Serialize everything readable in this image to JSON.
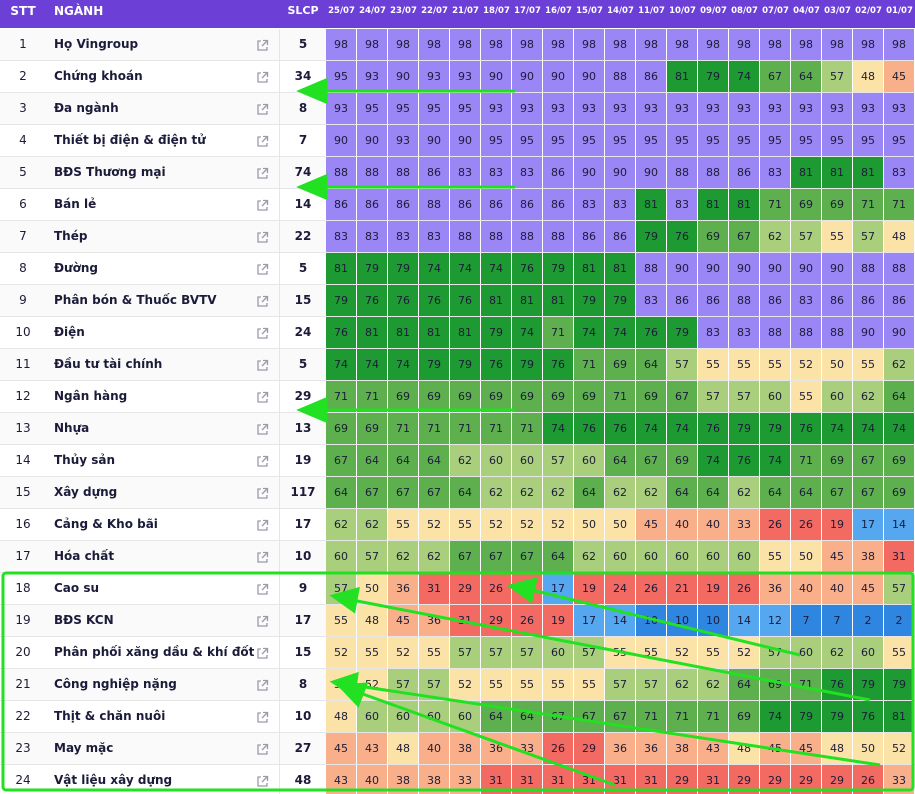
{
  "header": {
    "stt": "STT",
    "name": "NGÀNH",
    "slcp": "SLCP",
    "dates": [
      "25/07",
      "24/07",
      "23/07",
      "22/07",
      "21/07",
      "18/07",
      "17/07",
      "16/07",
      "15/07",
      "14/07",
      "11/07",
      "10/07",
      "09/07",
      "08/07",
      "07/07",
      "04/07",
      "03/07",
      "02/07",
      "01/07"
    ]
  },
  "rows": [
    {
      "stt": "1",
      "name": "Họ Vingroup",
      "slcp": "5",
      "values": [
        98,
        98,
        98,
        98,
        98,
        98,
        98,
        98,
        98,
        98,
        98,
        98,
        98,
        98,
        98,
        98,
        98,
        98,
        98
      ]
    },
    {
      "stt": "2",
      "name": "Chứng khoán",
      "slcp": "34",
      "values": [
        95,
        93,
        90,
        93,
        93,
        90,
        90,
        90,
        90,
        88,
        86,
        81,
        79,
        74,
        67,
        64,
        57,
        48,
        45
      ]
    },
    {
      "stt": "3",
      "name": "Đa ngành",
      "slcp": "8",
      "values": [
        93,
        95,
        95,
        95,
        95,
        93,
        93,
        93,
        93,
        93,
        93,
        93,
        93,
        93,
        93,
        93,
        93,
        93,
        93
      ]
    },
    {
      "stt": "4",
      "name": "Thiết bị điện & điện tử",
      "slcp": "7",
      "values": [
        90,
        90,
        93,
        90,
        90,
        95,
        95,
        95,
        95,
        95,
        95,
        95,
        95,
        95,
        95,
        95,
        95,
        95,
        95
      ]
    },
    {
      "stt": "5",
      "name": "BĐS Thương mại",
      "slcp": "74",
      "values": [
        88,
        88,
        88,
        86,
        83,
        83,
        83,
        86,
        90,
        90,
        90,
        88,
        88,
        86,
        83,
        81,
        81,
        81,
        83
      ]
    },
    {
      "stt": "6",
      "name": "Bán lẻ",
      "slcp": "14",
      "values": [
        86,
        86,
        86,
        88,
        86,
        86,
        86,
        86,
        83,
        83,
        81,
        83,
        81,
        81,
        71,
        69,
        69,
        71,
        71
      ]
    },
    {
      "stt": "7",
      "name": "Thép",
      "slcp": "22",
      "values": [
        83,
        83,
        83,
        83,
        88,
        88,
        88,
        88,
        86,
        86,
        79,
        76,
        69,
        67,
        62,
        57,
        55,
        57,
        48
      ]
    },
    {
      "stt": "8",
      "name": "Đường",
      "slcp": "5",
      "values": [
        81,
        79,
        79,
        74,
        74,
        74,
        76,
        79,
        81,
        81,
        88,
        90,
        90,
        90,
        90,
        90,
        90,
        88,
        88
      ]
    },
    {
      "stt": "9",
      "name": "Phân bón & Thuốc BVTV",
      "slcp": "15",
      "values": [
        79,
        76,
        76,
        76,
        76,
        81,
        81,
        81,
        79,
        79,
        83,
        86,
        86,
        88,
        86,
        83,
        86,
        86,
        86
      ]
    },
    {
      "stt": "10",
      "name": "Điện",
      "slcp": "24",
      "values": [
        76,
        81,
        81,
        81,
        81,
        79,
        74,
        71,
        74,
        74,
        76,
        79,
        83,
        83,
        88,
        88,
        88,
        90,
        90
      ]
    },
    {
      "stt": "11",
      "name": "Đầu tư tài chính",
      "slcp": "5",
      "values": [
        74,
        74,
        74,
        79,
        79,
        76,
        79,
        76,
        71,
        69,
        64,
        57,
        55,
        55,
        55,
        52,
        50,
        55,
        62
      ]
    },
    {
      "stt": "12",
      "name": "Ngân hàng",
      "slcp": "29",
      "values": [
        71,
        71,
        69,
        69,
        69,
        69,
        69,
        69,
        69,
        71,
        69,
        67,
        57,
        57,
        60,
        55,
        60,
        62,
        64
      ]
    },
    {
      "stt": "13",
      "name": "Nhựa",
      "slcp": "13",
      "values": [
        69,
        69,
        71,
        71,
        71,
        71,
        71,
        74,
        76,
        76,
        74,
        74,
        76,
        79,
        79,
        76,
        74,
        74,
        74
      ]
    },
    {
      "stt": "14",
      "name": "Thủy sản",
      "slcp": "19",
      "values": [
        67,
        64,
        64,
        64,
        62,
        60,
        60,
        57,
        60,
        64,
        67,
        69,
        74,
        76,
        74,
        71,
        69,
        67,
        69
      ]
    },
    {
      "stt": "15",
      "name": "Xây dựng",
      "slcp": "117",
      "values": [
        64,
        67,
        67,
        67,
        64,
        62,
        62,
        62,
        64,
        62,
        62,
        64,
        64,
        62,
        64,
        64,
        67,
        67,
        69
      ]
    },
    {
      "stt": "16",
      "name": "Cảng & Kho bãi",
      "slcp": "17",
      "values": [
        62,
        62,
        55,
        52,
        55,
        52,
        52,
        52,
        50,
        50,
        45,
        40,
        40,
        33,
        26,
        26,
        19,
        17,
        14
      ]
    },
    {
      "stt": "17",
      "name": "Hóa chất",
      "slcp": "10",
      "values": [
        60,
        57,
        62,
        62,
        67,
        67,
        67,
        64,
        62,
        60,
        60,
        60,
        60,
        60,
        55,
        50,
        45,
        38,
        31
      ]
    },
    {
      "stt": "18",
      "name": "Cao su",
      "slcp": "9",
      "values": [
        57,
        50,
        36,
        31,
        29,
        26,
        24,
        17,
        19,
        24,
        26,
        21,
        19,
        26,
        36,
        40,
        40,
        45,
        57
      ]
    },
    {
      "stt": "19",
      "name": "BĐS KCN",
      "slcp": "17",
      "values": [
        55,
        48,
        45,
        36,
        31,
        29,
        26,
        19,
        17,
        14,
        10,
        10,
        10,
        14,
        12,
        7,
        7,
        2,
        2
      ]
    },
    {
      "stt": "20",
      "name": "Phân phối xăng dầu & khí đốt",
      "slcp": "15",
      "values": [
        52,
        55,
        52,
        55,
        57,
        57,
        57,
        60,
        57,
        55,
        55,
        52,
        55,
        52,
        57,
        60,
        62,
        60,
        55
      ]
    },
    {
      "stt": "21",
      "name": "Công nghiệp nặng",
      "slcp": "8",
      "values": [
        50,
        52,
        57,
        57,
        52,
        55,
        55,
        55,
        55,
        57,
        57,
        62,
        62,
        64,
        69,
        71,
        76,
        79,
        79
      ]
    },
    {
      "stt": "22",
      "name": "Thịt & chăn nuôi",
      "slcp": "10",
      "values": [
        48,
        60,
        60,
        60,
        60,
        64,
        64,
        67,
        67,
        67,
        71,
        71,
        71,
        69,
        74,
        79,
        79,
        76,
        81
      ]
    },
    {
      "stt": "23",
      "name": "May mặc",
      "slcp": "27",
      "values": [
        45,
        43,
        48,
        40,
        38,
        36,
        33,
        26,
        29,
        36,
        36,
        38,
        43,
        48,
        45,
        45,
        48,
        50,
        52
      ]
    },
    {
      "stt": "24",
      "name": "Vật liệu xây dựng",
      "slcp": "48",
      "values": [
        43,
        40,
        38,
        38,
        33,
        31,
        31,
        31,
        31,
        31,
        31,
        29,
        31,
        29,
        29,
        29,
        29,
        26,
        33
      ]
    }
  ],
  "colors": {
    "header_bg": "#6c3fd6",
    "very_high": "#9a86f5",
    "high": "#1e9a33",
    "mid_high": "#5eb04e",
    "mid": "#a9cf7c",
    "neutral": "#fbe2a6",
    "low_mid": "#f9b08a",
    "low": "#f26a62",
    "very_low_a": "#55a7f0",
    "very_low_b": "#2f86e0",
    "annotation": "#22e022"
  },
  "icons": {
    "row_link": "external-link-icon"
  }
}
